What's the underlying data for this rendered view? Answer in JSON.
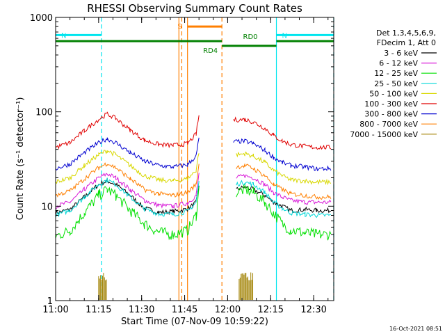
{
  "chart_data": {
    "type": "line",
    "title": "RHESSI Observing Summary Count Rates",
    "xlabel": "Start Time (07-Nov-09 10:59:22)",
    "ylabel": "Count Rate (s⁻¹ detector⁻¹)",
    "yscale": "log",
    "ylim": [
      1,
      1000
    ],
    "xlim": [
      "11:00",
      "12:37"
    ],
    "x_ticks": [
      "11:00",
      "11:15",
      "11:30",
      "11:45",
      "12:00",
      "12:15",
      "12:30"
    ],
    "y_ticks": [
      "1",
      "10",
      "100",
      "1000"
    ],
    "legend": {
      "placement": "right",
      "header": [
        "Det 1,3,4,5,6,9,",
        "FDecim 1, Att 0"
      ]
    },
    "series": [
      {
        "name": "3 - 6 keV",
        "color": "#000000",
        "points": [
          [
            "11:00",
            8.5
          ],
          [
            "11:05",
            9.2
          ],
          [
            "11:10",
            12.5
          ],
          [
            "11:15",
            17
          ],
          [
            "11:18",
            18.5
          ],
          [
            "11:21",
            17
          ],
          [
            "11:26",
            13
          ],
          [
            "11:31",
            9.5
          ],
          [
            "11:36",
            8.6
          ],
          [
            "11:41",
            8.8
          ],
          [
            "11:46",
            9.3
          ],
          [
            "11:49",
            11
          ],
          [
            "11:50",
            17
          ],
          null,
          [
            "12:03",
            15
          ],
          [
            "12:06",
            16
          ],
          [
            "12:09",
            15
          ],
          [
            "12:13",
            13
          ],
          [
            "12:16",
            11
          ],
          [
            "12:19",
            10
          ],
          [
            "12:22",
            9
          ],
          [
            "12:27",
            9.2
          ],
          [
            "12:31",
            9
          ],
          [
            "12:36",
            9
          ]
        ]
      },
      {
        "name": "6 - 12 keV",
        "color": "#d818d8",
        "points": [
          [
            "11:00",
            10
          ],
          [
            "11:05",
            11
          ],
          [
            "11:10",
            15
          ],
          [
            "11:15",
            20
          ],
          [
            "11:18",
            22
          ],
          [
            "11:21",
            20
          ],
          [
            "11:26",
            15
          ],
          [
            "11:31",
            11.5
          ],
          [
            "11:36",
            10.2
          ],
          [
            "11:41",
            10
          ],
          [
            "11:46",
            10.8
          ],
          [
            "11:49",
            13
          ],
          [
            "11:50",
            22
          ],
          null,
          [
            "12:03",
            20
          ],
          [
            "12:06",
            21
          ],
          [
            "12:09",
            20
          ],
          [
            "12:13",
            17
          ],
          [
            "12:16",
            14
          ],
          [
            "12:19",
            12.5
          ],
          [
            "12:22",
            11.5
          ],
          [
            "12:27",
            11
          ],
          [
            "12:31",
            11
          ],
          [
            "12:36",
            11
          ]
        ]
      },
      {
        "name": "12 - 25 keV",
        "color": "#00e000",
        "points": [
          [
            "11:00",
            4.8
          ],
          [
            "11:05",
            5.5
          ],
          [
            "11:10",
            8.5
          ],
          [
            "11:15",
            13
          ],
          [
            "11:18",
            15
          ],
          [
            "11:21",
            13
          ],
          [
            "11:26",
            9
          ],
          [
            "11:31",
            6.5
          ],
          [
            "11:36",
            5.3
          ],
          [
            "11:41",
            5
          ],
          [
            "11:46",
            5.5
          ],
          [
            "11:49",
            8
          ],
          [
            "11:50",
            15
          ],
          null,
          [
            "12:03",
            14
          ],
          [
            "12:06",
            15
          ],
          [
            "12:09",
            14
          ],
          [
            "12:13",
            11
          ],
          [
            "12:16",
            8.5
          ],
          [
            "12:19",
            6.5
          ],
          [
            "12:22",
            5.6
          ],
          [
            "12:27",
            5.2
          ],
          [
            "12:31",
            5
          ],
          [
            "12:36",
            5
          ]
        ]
      },
      {
        "name": "25 - 50 keV",
        "color": "#00d8d8",
        "points": [
          [
            "11:00",
            8
          ],
          [
            "11:05",
            9
          ],
          [
            "11:10",
            12.5
          ],
          [
            "11:15",
            17
          ],
          [
            "11:18",
            19
          ],
          [
            "11:21",
            17
          ],
          [
            "11:26",
            12.5
          ],
          [
            "11:31",
            9.3
          ],
          [
            "11:36",
            8.3
          ],
          [
            "11:41",
            8.2
          ],
          [
            "11:46",
            8.8
          ],
          [
            "11:49",
            11
          ],
          [
            "11:50",
            18
          ],
          null,
          [
            "12:03",
            17
          ],
          [
            "12:06",
            18
          ],
          [
            "12:09",
            17
          ],
          [
            "12:13",
            14
          ],
          [
            "12:16",
            11
          ],
          [
            "12:19",
            9.5
          ],
          [
            "12:22",
            8.5
          ],
          [
            "12:27",
            8.2
          ],
          [
            "12:31",
            8
          ],
          [
            "12:36",
            8
          ]
        ]
      },
      {
        "name": "50 - 100 keV",
        "color": "#d8d800",
        "points": [
          [
            "11:00",
            18
          ],
          [
            "11:05",
            20
          ],
          [
            "11:10",
            27
          ],
          [
            "11:15",
            35
          ],
          [
            "11:18",
            39
          ],
          [
            "11:21",
            35
          ],
          [
            "11:26",
            27
          ],
          [
            "11:31",
            21
          ],
          [
            "11:36",
            19
          ],
          [
            "11:41",
            18.5
          ],
          [
            "11:46",
            19.5
          ],
          [
            "11:49",
            24
          ],
          [
            "11:50",
            38
          ],
          null,
          [
            "12:03",
            35
          ],
          [
            "12:06",
            36
          ],
          [
            "12:09",
            34
          ],
          [
            "12:13",
            29
          ],
          [
            "12:16",
            24
          ],
          [
            "12:19",
            21
          ],
          [
            "12:22",
            19
          ],
          [
            "12:27",
            18.5
          ],
          [
            "12:31",
            18
          ],
          [
            "12:36",
            18
          ]
        ]
      },
      {
        "name": "100 - 300 keV",
        "color": "#e00000",
        "points": [
          [
            "11:00",
            42
          ],
          [
            "11:05",
            47
          ],
          [
            "11:10",
            63
          ],
          [
            "11:15",
            83
          ],
          [
            "11:18",
            95
          ],
          [
            "11:21",
            85
          ],
          [
            "11:26",
            64
          ],
          [
            "11:31",
            50
          ],
          [
            "11:36",
            45
          ],
          [
            "11:41",
            44
          ],
          [
            "11:46",
            46
          ],
          [
            "11:49",
            58
          ],
          [
            "11:50",
            92
          ],
          null,
          [
            "12:02",
            82
          ],
          [
            "12:06",
            83
          ],
          [
            "12:09",
            78
          ],
          [
            "12:13",
            67
          ],
          [
            "12:16",
            56
          ],
          [
            "12:19",
            49
          ],
          [
            "12:22",
            45
          ],
          [
            "12:27",
            43
          ],
          [
            "12:31",
            42
          ],
          [
            "12:36",
            42
          ]
        ]
      },
      {
        "name": "300 - 800 keV",
        "color": "#0000d0",
        "points": [
          [
            "11:00",
            25
          ],
          [
            "11:05",
            28
          ],
          [
            "11:10",
            37
          ],
          [
            "11:15",
            47
          ],
          [
            "11:18",
            52
          ],
          [
            "11:21",
            47
          ],
          [
            "11:26",
            37
          ],
          [
            "11:31",
            30
          ],
          [
            "11:36",
            27
          ],
          [
            "11:41",
            26
          ],
          [
            "11:46",
            27.5
          ],
          [
            "11:49",
            34
          ],
          [
            "11:50",
            52
          ],
          null,
          [
            "12:02",
            48
          ],
          [
            "12:06",
            49
          ],
          [
            "12:09",
            46
          ],
          [
            "12:13",
            39
          ],
          [
            "12:16",
            33
          ],
          [
            "12:19",
            29
          ],
          [
            "12:22",
            27
          ],
          [
            "12:27",
            26
          ],
          [
            "12:31",
            25
          ],
          [
            "12:36",
            25
          ]
        ]
      },
      {
        "name": "800 - 7000 keV",
        "color": "#ff7f00",
        "points": [
          [
            "11:00",
            13
          ],
          [
            "11:05",
            14.5
          ],
          [
            "11:10",
            19.5
          ],
          [
            "11:15",
            25.5
          ],
          [
            "11:18",
            28.5
          ],
          [
            "11:21",
            25.5
          ],
          [
            "11:26",
            19.5
          ],
          [
            "11:31",
            15
          ],
          [
            "11:36",
            13.5
          ],
          [
            "11:41",
            13
          ],
          [
            "11:46",
            14
          ],
          [
            "11:49",
            17
          ],
          [
            "11:50",
            28
          ],
          null,
          [
            "12:03",
            26
          ],
          [
            "12:06",
            27
          ],
          [
            "12:09",
            25
          ],
          [
            "12:13",
            21
          ],
          [
            "12:16",
            17
          ],
          [
            "12:19",
            15
          ],
          [
            "12:22",
            13.5
          ],
          [
            "12:27",
            13
          ],
          [
            "12:31",
            12.5
          ],
          [
            "12:36",
            12.5
          ]
        ]
      },
      {
        "name": "7000 - 15000 keV",
        "color": "#a08000",
        "points": [
          [
            "11:15",
            2.0
          ],
          [
            "11:18",
            2.0
          ],
          [
            "12:04",
            2.0
          ],
          [
            "12:09",
            2.0
          ]
        ]
      }
    ],
    "annotations": [
      {
        "label": "N",
        "color": "#00e5ee",
        "from": "11:00",
        "to": "11:16",
        "y": 650,
        "kind": "bar"
      },
      {
        "label": "N",
        "color": "#00e5ee",
        "from": "12:17",
        "to": "12:37",
        "y": 650,
        "kind": "bar"
      },
      {
        "label": "",
        "color": "#008000",
        "from": "11:00",
        "to": "11:58",
        "y": 560,
        "kind": "bar"
      },
      {
        "label": "RD4",
        "color": "#008000",
        "from": "11:58",
        "to": "12:17",
        "y": 500,
        "kind": "bar"
      },
      {
        "label": "RD0",
        "color": "#008000",
        "from": "12:17",
        "to": "12:37",
        "y": 560,
        "kind": "bar"
      },
      {
        "label": "S",
        "color": "#ff7f00",
        "from": "11:46",
        "to": "11:58",
        "y": 800,
        "kind": "bar"
      }
    ],
    "vlines": [
      {
        "x": "11:16",
        "color": "#00e5ee",
        "style": "dashed"
      },
      {
        "x": "12:17",
        "color": "#00e5ee",
        "style": "solid"
      },
      {
        "x": "12:37",
        "color": "#00e5ee",
        "style": "dashed"
      },
      {
        "x": "11:43",
        "color": "#ff7f00",
        "style": "solid"
      },
      {
        "x": "11:44",
        "color": "#ff7f00",
        "style": "dashed"
      },
      {
        "x": "11:46",
        "color": "#ff7f00",
        "style": "solid"
      },
      {
        "x": "11:58",
        "color": "#ff7f00",
        "style": "dashed"
      }
    ],
    "grid": false,
    "timestamp": "16-Oct-2021 08:51"
  }
}
